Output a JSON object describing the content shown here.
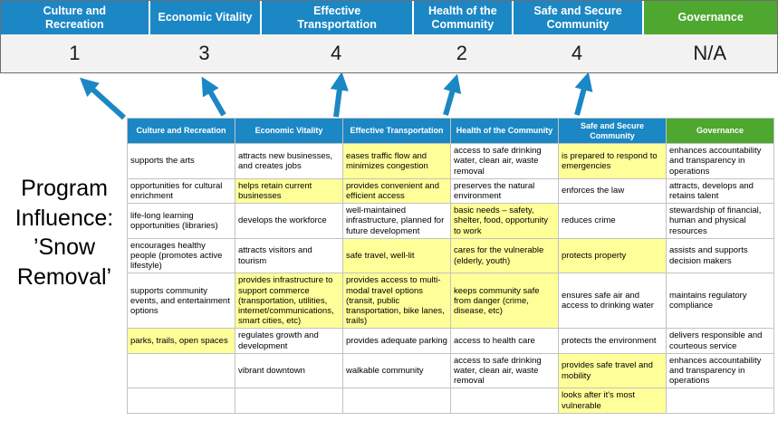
{
  "title": "Program Influence: ’Snow Removal’",
  "colors": {
    "header_blue": "#1B87C5",
    "header_green": "#4EA72E",
    "highlight_yellow": "#FFFF99",
    "score_band_gray": "#F2F2F2",
    "arrow_blue": "#1B87C5"
  },
  "banner": {
    "columns": [
      {
        "label": "Culture and\nRecreation",
        "score": "1",
        "theme": "blue"
      },
      {
        "label": "Economic Vitality",
        "score": "3",
        "theme": "blue"
      },
      {
        "label": "Effective\nTransportation",
        "score": "4",
        "theme": "blue"
      },
      {
        "label": "Health of the\nCommunity",
        "score": "2",
        "theme": "blue"
      },
      {
        "label": "Safe and Secure\nCommunity",
        "score": "4",
        "theme": "blue"
      },
      {
        "label": "Governance",
        "score": "N/A",
        "theme": "green"
      }
    ]
  },
  "table": {
    "headers": [
      {
        "label": "Culture and Recreation",
        "theme": "blue"
      },
      {
        "label": "Economic Vitality",
        "theme": "blue"
      },
      {
        "label": "Effective Transportation",
        "theme": "blue"
      },
      {
        "label": "Health of the Community",
        "theme": "blue"
      },
      {
        "label": "Safe and Secure Community",
        "theme": "blue"
      },
      {
        "label": "Governance",
        "theme": "green"
      }
    ],
    "rows": [
      [
        {
          "text": "supports the arts",
          "highlight": false
        },
        {
          "text": "attracts new businesses, and creates jobs",
          "highlight": false
        },
        {
          "text": "eases traffic flow and minimizes congestion",
          "highlight": true
        },
        {
          "text": "access to safe drinking water, clean air, waste removal",
          "highlight": false
        },
        {
          "text": "is prepared to respond to emergencies",
          "highlight": true
        },
        {
          "text": "enhances accountability and transparency in operations",
          "highlight": false
        }
      ],
      [
        {
          "text": "opportunities for cultural enrichment",
          "highlight": false
        },
        {
          "text": "helps retain current businesses",
          "highlight": true
        },
        {
          "text": "provides convenient and efficient access",
          "highlight": true
        },
        {
          "text": "preserves the natural environment",
          "highlight": false
        },
        {
          "text": "enforces the law",
          "highlight": false
        },
        {
          "text": "attracts, develops and retains talent",
          "highlight": false
        }
      ],
      [
        {
          "text": "life-long learning opportunities (libraries)",
          "highlight": false
        },
        {
          "text": "develops the workforce",
          "highlight": false
        },
        {
          "text": "well-maintained infrastructure, planned for future development",
          "highlight": false
        },
        {
          "text": "basic needs – safety, shelter, food, opportunity to work",
          "highlight": true
        },
        {
          "text": "reduces crime",
          "highlight": false
        },
        {
          "text": "stewardship of financial, human and physical resources",
          "highlight": false
        }
      ],
      [
        {
          "text": "encourages healthy people (promotes active lifestyle)",
          "highlight": false
        },
        {
          "text": "attracts visitors and tourism",
          "highlight": false
        },
        {
          "text": "safe travel, well-lit",
          "highlight": true
        },
        {
          "text": "cares for the vulnerable (elderly, youth)",
          "highlight": true
        },
        {
          "text": "protects property",
          "highlight": true
        },
        {
          "text": "assists and supports decision makers",
          "highlight": false
        }
      ],
      [
        {
          "text": "supports community events, and entertainment options",
          "highlight": false
        },
        {
          "text": "provides infrastructure to support commerce (transportation, utilities, internet/communications, smart cities, etc)",
          "highlight": true
        },
        {
          "text": "provides access to multi-modal travel options (transit, public transportation, bike lanes, trails)",
          "highlight": true
        },
        {
          "text": "keeps community safe from danger (crime, disease, etc)",
          "highlight": true
        },
        {
          "text": "ensures safe air and access to drinking water",
          "highlight": false
        },
        {
          "text": "maintains regulatory compliance",
          "highlight": false
        }
      ],
      [
        {
          "text": "parks, trails, open spaces",
          "highlight": true
        },
        {
          "text": "regulates growth and development",
          "highlight": false
        },
        {
          "text": "provides adequate parking",
          "highlight": false
        },
        {
          "text": "access to health care",
          "highlight": false
        },
        {
          "text": "protects the environment",
          "highlight": false
        },
        {
          "text": "delivers responsible and courteous service",
          "highlight": false
        }
      ],
      [
        {
          "text": "",
          "highlight": false
        },
        {
          "text": "vibrant downtown",
          "highlight": false
        },
        {
          "text": "walkable community",
          "highlight": false
        },
        {
          "text": "access to safe drinking water, clean air, waste removal",
          "highlight": false
        },
        {
          "text": "provides safe travel and mobility",
          "highlight": true
        },
        {
          "text": "enhances accountability and transparency in operations",
          "highlight": false
        }
      ],
      [
        {
          "text": "",
          "highlight": false
        },
        {
          "text": "",
          "highlight": false
        },
        {
          "text": "",
          "highlight": false
        },
        {
          "text": "",
          "highlight": false
        },
        {
          "text": "looks after it's most vulnerable",
          "highlight": true
        },
        {
          "text": "",
          "highlight": false
        }
      ]
    ]
  }
}
